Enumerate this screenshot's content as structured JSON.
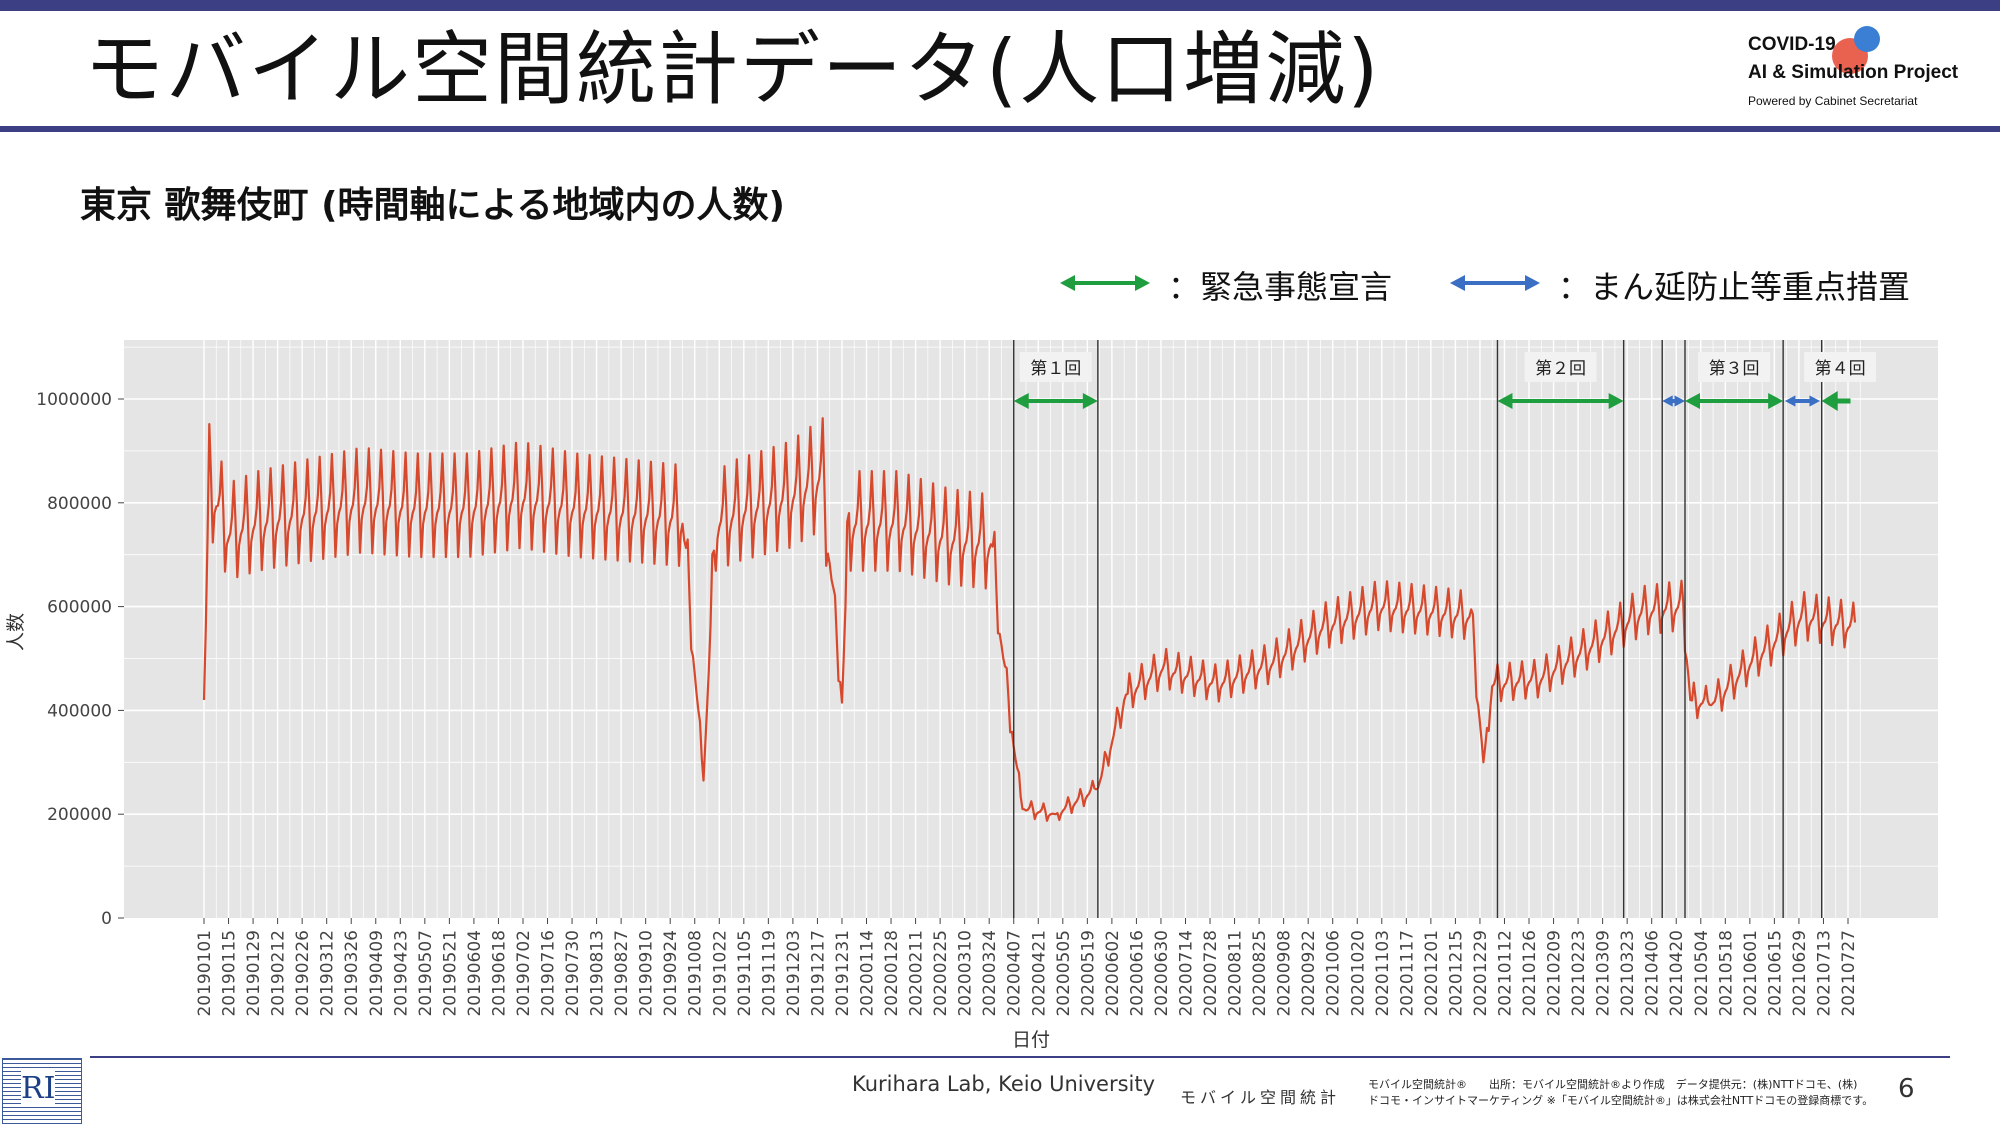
{
  "slide": {
    "title": "モバイル空間統計データ(人口増減)",
    "subtitle": "東京 歌舞伎町 (時間軸による地域内の人数)",
    "logo": {
      "line1": "COVID-19",
      "line2": "AI & Simulation Project",
      "line3": "Powered by Cabinet Secretariat"
    },
    "legend": {
      "emergency": {
        "label": "：緊急事態宣言",
        "color": "#1e9e3e"
      },
      "priority": {
        "label": "：まん延防止等重点措置",
        "color": "#3a6fc4"
      }
    },
    "footer": {
      "credit": "Kurihara Lab, Keio University",
      "brand": "モバイル空間統計",
      "source1": "モバイル空間統計®　　出所：モバイル空間統計®より作成　データ提供元：(株)NTTドコモ、(株)",
      "source2": "ドコモ・インサイトマーケティング ※「モバイル空間統計®」は株式会社NTTドコモの登録商標です。",
      "page": "6"
    }
  },
  "chart_data": {
    "type": "line",
    "xlabel": "日付",
    "ylabel": "人数",
    "ylim": [
      0,
      1110000
    ],
    "yticks": [
      0,
      200000,
      400000,
      600000,
      800000,
      1000000
    ],
    "ytick_labels": [
      "0",
      "200000",
      "400000",
      "600000",
      "800000",
      "1000000"
    ],
    "line_color": "#d6492d",
    "background": "#e5e5e5",
    "grid": true,
    "x_start": "2019-01-01",
    "x_end": "2021-08-02",
    "xtick_labels": [
      "20190101",
      "20190115",
      "20190129",
      "20190212",
      "20190226",
      "20190312",
      "20190326",
      "20190409",
      "20190423",
      "20190507",
      "20190521",
      "20190604",
      "20190618",
      "20190702",
      "20190716",
      "20190730",
      "20190813",
      "20190827",
      "20190910",
      "20190924",
      "20191008",
      "20191022",
      "20191105",
      "20191119",
      "20191203",
      "20191217",
      "20191231",
      "20200114",
      "20200128",
      "20200211",
      "20200225",
      "20200310",
      "20200324",
      "20200407",
      "20200421",
      "20200505",
      "20200519",
      "20200602",
      "20200616",
      "20200630",
      "20200714",
      "20200728",
      "20200811",
      "20200825",
      "20200908",
      "20200922",
      "20201006",
      "20201020",
      "20201103",
      "20201117",
      "20201201",
      "20201215",
      "20201229",
      "20210112",
      "20210126",
      "20210209",
      "20210223",
      "20210309",
      "20210323",
      "20210406",
      "20210420",
      "20210504",
      "20210518",
      "20210601",
      "20210615",
      "20210629",
      "20210713",
      "20210727"
    ],
    "series": [
      {
        "values": [
          {
            "date": "2019-01-01",
            "value": 420000
          },
          {
            "date": "2019-01-04",
            "value": 840000
          },
          {
            "date": "2019-01-15",
            "value": 740000
          },
          {
            "date": "2019-02-01",
            "value": 760000
          },
          {
            "date": "2019-03-01",
            "value": 780000
          },
          {
            "date": "2019-04-01",
            "value": 800000
          },
          {
            "date": "2019-05-01",
            "value": 790000
          },
          {
            "date": "2019-06-01",
            "value": 790000
          },
          {
            "date": "2019-07-01",
            "value": 810000
          },
          {
            "date": "2019-08-01",
            "value": 790000
          },
          {
            "date": "2019-09-01",
            "value": 780000
          },
          {
            "date": "2019-10-01",
            "value": 770000
          },
          {
            "date": "2019-10-13",
            "value": 265000
          },
          {
            "date": "2019-10-20",
            "value": 760000
          },
          {
            "date": "2019-11-01",
            "value": 780000
          },
          {
            "date": "2019-12-01",
            "value": 810000
          },
          {
            "date": "2019-12-20",
            "value": 850000
          },
          {
            "date": "2019-12-31",
            "value": 415000
          },
          {
            "date": "2020-01-04",
            "value": 760000
          },
          {
            "date": "2020-02-01",
            "value": 760000
          },
          {
            "date": "2020-03-01",
            "value": 730000
          },
          {
            "date": "2020-03-25",
            "value": 720000
          },
          {
            "date": "2020-03-31",
            "value": 530000
          },
          {
            "date": "2020-04-07",
            "value": 330000
          },
          {
            "date": "2020-04-12",
            "value": 210000
          },
          {
            "date": "2020-05-01",
            "value": 200000
          },
          {
            "date": "2020-05-25",
            "value": 250000
          },
          {
            "date": "2020-06-10",
            "value": 430000
          },
          {
            "date": "2020-07-01",
            "value": 480000
          },
          {
            "date": "2020-08-01",
            "value": 450000
          },
          {
            "date": "2020-09-01",
            "value": 490000
          },
          {
            "date": "2020-10-01",
            "value": 560000
          },
          {
            "date": "2020-11-01",
            "value": 600000
          },
          {
            "date": "2020-12-01",
            "value": 590000
          },
          {
            "date": "2020-12-24",
            "value": 580000
          },
          {
            "date": "2020-12-31",
            "value": 300000
          },
          {
            "date": "2021-01-05",
            "value": 450000
          },
          {
            "date": "2021-02-01",
            "value": 460000
          },
          {
            "date": "2021-03-01",
            "value": 520000
          },
          {
            "date": "2021-04-01",
            "value": 590000
          },
          {
            "date": "2021-04-24",
            "value": 600000
          },
          {
            "date": "2021-04-28",
            "value": 420000
          },
          {
            "date": "2021-05-10",
            "value": 410000
          },
          {
            "date": "2021-06-01",
            "value": 490000
          },
          {
            "date": "2021-07-01",
            "value": 580000
          },
          {
            "date": "2021-07-31",
            "value": 560000
          }
        ]
      }
    ],
    "period_lines": [
      "2020-04-07",
      "2020-05-25",
      "2021-01-08",
      "2021-03-21",
      "2021-04-12",
      "2021-04-25",
      "2021-06-20",
      "2021-07-12"
    ],
    "periods": [
      {
        "kind": "emergency",
        "start": "2020-04-07",
        "end": "2020-05-25",
        "label": "第１回"
      },
      {
        "kind": "emergency",
        "start": "2021-01-08",
        "end": "2021-03-21",
        "label": "第２回"
      },
      {
        "kind": "priority",
        "start": "2021-04-12",
        "end": "2021-04-25",
        "label": ""
      },
      {
        "kind": "emergency",
        "start": "2021-04-25",
        "end": "2021-06-20",
        "label": "第３回"
      },
      {
        "kind": "priority",
        "start": "2021-06-21",
        "end": "2021-07-11",
        "label": ""
      },
      {
        "kind": "emergency",
        "start": "2021-07-12",
        "end": "2021-08-02",
        "label": "第４回"
      }
    ]
  }
}
